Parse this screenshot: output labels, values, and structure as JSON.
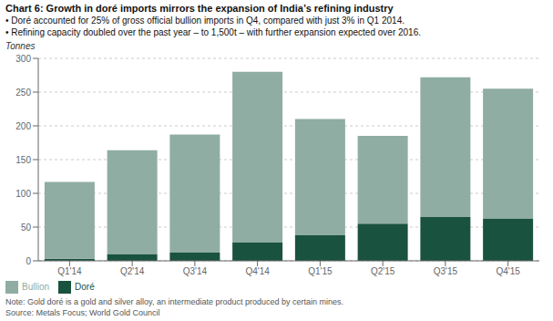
{
  "chart_data": {
    "type": "bar",
    "title": "Chart 6: Growth in doré imports mirrors the expansion of India’s refining industry",
    "annotations": [
      "• Doré accounted for 25% of gross official bullion imports in Q4, compared with just 3% in Q1 2014.",
      "• Refining capacity doubled over the past year – to 1,500t – with further expansion expected over 2016.",
      "Note: Gold doré is a gold and silver alloy, an intermediate product produced by certain mines.",
      "Source: Metals Focus; World Gold Council"
    ],
    "ylabel": "Tonnes",
    "categories": [
      "Q1'14",
      "Q2'14",
      "Q3'14",
      "Q4'14",
      "Q1'15",
      "Q2'15",
      "Q3'15",
      "Q4'15"
    ],
    "series": [
      {
        "name": "Doré",
        "color": "#1a5240",
        "values": [
          3,
          10,
          12,
          27,
          38,
          55,
          65,
          63
        ]
      },
      {
        "name": "Bullion",
        "color": "#8fada3",
        "values": [
          114,
          154,
          175,
          253,
          172,
          130,
          207,
          192
        ]
      }
    ],
    "stacked": true,
    "ylim": [
      0,
      300
    ],
    "yticks": [
      0,
      50,
      100,
      150,
      200,
      250,
      300
    ],
    "grid": true,
    "legend": "lower left"
  }
}
